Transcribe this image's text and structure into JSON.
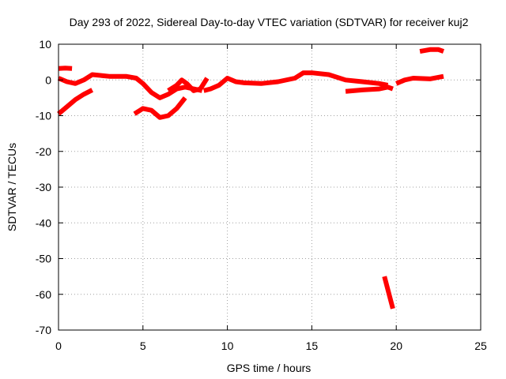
{
  "chart_data": {
    "type": "line",
    "title": "Day 293 of 2022, Sidereal Day-to-day VTEC variation (SDTVAR) for receiver kuj2",
    "xlabel": "GPS time / hours",
    "ylabel": "SDTVAR / TECUs",
    "xlim": [
      0,
      25
    ],
    "ylim": [
      -70,
      10
    ],
    "xticks": [
      0,
      5,
      10,
      15,
      20,
      25
    ],
    "xtick_labels": [
      "0",
      "5",
      "10",
      "15",
      "20",
      "25"
    ],
    "yticks": [
      10,
      0,
      -10,
      -20,
      -30,
      -40,
      -50,
      -60,
      -70
    ],
    "ytick_labels": [
      "10",
      "0",
      "-10",
      "-20",
      "-30",
      "-40",
      "-50",
      "-60",
      "-70"
    ],
    "grid": true,
    "color": "#ff0000",
    "series": [
      {
        "name": "s1",
        "x": [
          0.0,
          0.4,
          0.8
        ],
        "y": [
          3.2,
          3.3,
          3.2
        ]
      },
      {
        "name": "s2",
        "x": [
          0.0,
          0.5,
          1.0,
          1.5,
          2.0,
          3.0,
          4.0,
          4.6,
          5.0,
          5.5,
          6.0,
          6.5,
          7.0,
          7.5,
          8.0,
          8.5
        ],
        "y": [
          0.5,
          -0.5,
          -1.0,
          0.0,
          1.5,
          1.0,
          1.0,
          0.5,
          -1.0,
          -3.5,
          -5.0,
          -4.0,
          -2.5,
          -2.0,
          -2.5,
          -3.0
        ]
      },
      {
        "name": "s3",
        "x": [
          0.0,
          0.5,
          1.0,
          1.5,
          2.0
        ],
        "y": [
          -9.5,
          -7.5,
          -5.5,
          -4.0,
          -2.8
        ]
      },
      {
        "name": "s4",
        "x": [
          4.5,
          5.0,
          5.5,
          6.0,
          6.5,
          7.0,
          7.5
        ],
        "y": [
          -9.5,
          -8.0,
          -8.5,
          -10.5,
          -10.0,
          -8.0,
          -5.0
        ]
      },
      {
        "name": "s5",
        "x": [
          6.5,
          7.0,
          7.3,
          7.6,
          8.0,
          8.4,
          8.8
        ],
        "y": [
          -3.0,
          -1.5,
          0.0,
          -1.0,
          -3.0,
          -2.5,
          0.5
        ]
      },
      {
        "name": "s6",
        "x": [
          8.6,
          9.0,
          9.5,
          10.0,
          10.5,
          11.0,
          12.0,
          13.0,
          14.0,
          14.5,
          15.0,
          16.0,
          17.0,
          18.0,
          19.0,
          19.5
        ],
        "y": [
          -3.0,
          -2.5,
          -1.5,
          0.5,
          -0.5,
          -0.8,
          -1.0,
          -0.5,
          0.5,
          2.0,
          2.0,
          1.5,
          0.0,
          -0.5,
          -1.0,
          -1.5
        ]
      },
      {
        "name": "s7",
        "x": [
          17.0,
          18.0,
          19.0,
          19.5,
          19.8
        ],
        "y": [
          -3.2,
          -2.8,
          -2.5,
          -2.0,
          -2.5
        ]
      },
      {
        "name": "s8",
        "x": [
          19.3,
          19.8
        ],
        "y": [
          -55.0,
          -64.0
        ]
      },
      {
        "name": "s9",
        "x": [
          20.0,
          20.5,
          21.0,
          22.0,
          22.8
        ],
        "y": [
          -1.0,
          0.0,
          0.5,
          0.3,
          1.0
        ]
      },
      {
        "name": "s10",
        "x": [
          21.4,
          22.0,
          22.5,
          22.8
        ],
        "y": [
          8.0,
          8.5,
          8.5,
          8.0
        ]
      }
    ]
  }
}
